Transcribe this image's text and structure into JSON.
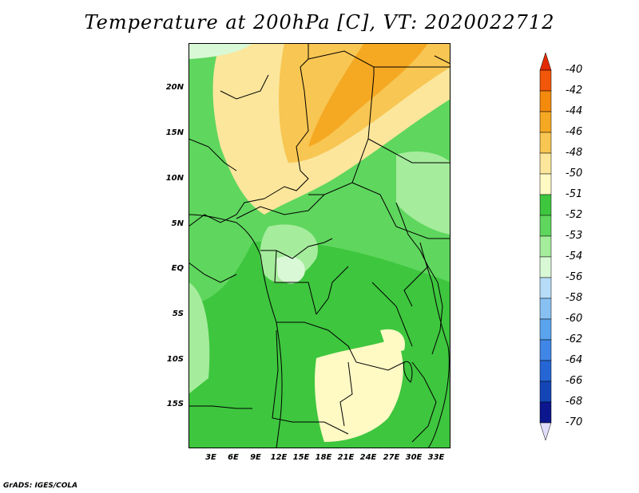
{
  "title": "Temperature at 200hPa [C], VT: 2020022712",
  "y_ticks": [
    "20N",
    "15N",
    "10N",
    "5N",
    "EQ",
    "5S",
    "10S",
    "15S"
  ],
  "x_ticks": [
    "3E",
    "6E",
    "9E",
    "12E",
    "15E",
    "18E",
    "21E",
    "24E",
    "27E",
    "30E",
    "33E"
  ],
  "footer": "GrADS: IGES/COLA",
  "colorbar": {
    "labels": [
      "-40",
      "-42",
      "-44",
      "-46",
      "-48",
      "-50",
      "-51",
      "-52",
      "-53",
      "-54",
      "-56",
      "-58",
      "-60",
      "-62",
      "-64",
      "-66",
      "-68",
      "-70"
    ],
    "colors": [
      "#e22b05",
      "#f25608",
      "#f48a0c",
      "#f5a822",
      "#f8c652",
      "#fbe69c",
      "#fff9c4",
      "#3ec63e",
      "#5fd65e",
      "#a5ec9c",
      "#d9f9d6",
      "#b6dcf8",
      "#88c0f2",
      "#5aa3ee",
      "#3f86e6",
      "#2566d4",
      "#1345b6",
      "#0c168e",
      "#e1dcf7"
    ]
  }
}
